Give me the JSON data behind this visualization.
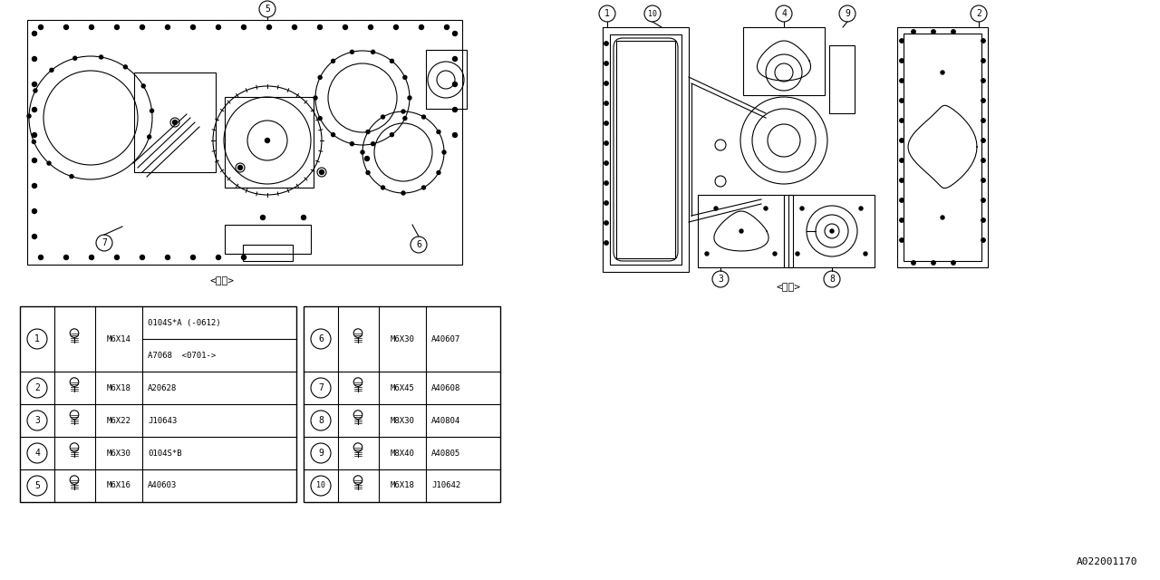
{
  "bg_color": "#ffffff",
  "line_color": "#000000",
  "fig_width": 12.8,
  "fig_height": 6.4,
  "table_rows": [
    {
      "num": "1",
      "size": "M6X14",
      "part1": "0104S*A (-0612)",
      "part2": "A7068  <0701->",
      "num_r": "6",
      "size_r": "M6X30",
      "part_r": "A40607"
    },
    {
      "num": "2",
      "size": "M6X18",
      "part1": "A20628",
      "part2": "",
      "num_r": "7",
      "size_r": "M6X45",
      "part_r": "A40608"
    },
    {
      "num": "3",
      "size": "M6X22",
      "part1": "J10643",
      "part2": "",
      "num_r": "8",
      "size_r": "M8X30",
      "part_r": "A40804"
    },
    {
      "num": "4",
      "size": "M6X30",
      "part1": "0104S*B",
      "part2": "",
      "num_r": "9",
      "size_r": "M8X40",
      "part_r": "A40805"
    },
    {
      "num": "5",
      "size": "M6X16",
      "part1": "A40603",
      "part2": "",
      "num_r": "10",
      "size_r": "M6X18",
      "part_r": "J10642"
    }
  ],
  "label_gaiwaku": "<外側>",
  "label_uchigawa": "<内側>",
  "label_code": "A022001170"
}
